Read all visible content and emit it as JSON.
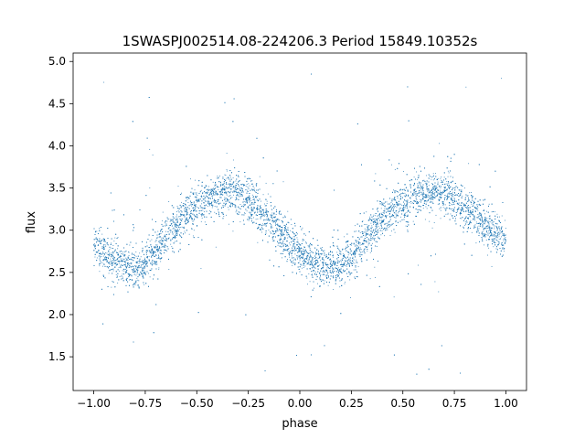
{
  "chart_data": {
    "type": "scatter",
    "title": "1SWASPJ002514.08-224206.3 Period 15849.10352s",
    "xlabel": "phase",
    "ylabel": "flux",
    "xlim": [
      -1.1,
      1.1
    ],
    "ylim": [
      1.1,
      5.1
    ],
    "xticks": [
      -1.0,
      -0.75,
      -0.5,
      -0.25,
      0.0,
      0.25,
      0.5,
      0.75,
      1.0
    ],
    "xtick_labels": [
      "−1.00",
      "−0.75",
      "−0.50",
      "−0.25",
      "0.00",
      "0.25",
      "0.50",
      "0.75",
      "1.00"
    ],
    "yticks": [
      1.5,
      2.0,
      2.5,
      3.0,
      3.5,
      4.0,
      4.5,
      5.0
    ],
    "ytick_labels": [
      "1.5",
      "2.0",
      "2.5",
      "3.0",
      "3.5",
      "4.0",
      "4.5",
      "5.0"
    ],
    "grid": false,
    "marker_color": "#1f77b4",
    "series": [
      {
        "x": [
          -1.0,
          -0.95,
          -0.9,
          -0.85,
          -0.8,
          -0.75,
          -0.7,
          -0.65,
          -0.6,
          -0.55,
          -0.5,
          -0.45,
          -0.4,
          -0.35,
          -0.3,
          -0.25,
          -0.2,
          -0.15,
          -0.1,
          -0.05,
          0.0,
          0.05,
          0.1,
          0.15,
          0.2,
          0.25,
          0.3,
          0.35,
          0.4,
          0.45,
          0.5,
          0.55,
          0.6,
          0.65,
          0.7,
          0.75,
          0.8,
          0.85,
          0.9,
          0.95,
          1.0
        ],
        "y": [
          2.82,
          2.72,
          2.64,
          2.57,
          2.55,
          2.6,
          2.76,
          2.92,
          3.06,
          3.19,
          3.28,
          3.36,
          3.42,
          3.45,
          3.43,
          3.36,
          3.25,
          3.12,
          3.0,
          2.87,
          2.75,
          2.64,
          2.57,
          2.55,
          2.58,
          2.7,
          2.86,
          3.01,
          3.14,
          3.24,
          3.32,
          3.39,
          3.44,
          3.45,
          3.43,
          3.37,
          3.27,
          3.16,
          3.06,
          2.96,
          2.87
        ],
        "scatter_std": 0.12,
        "outlier_range": [
          1.25,
          4.95
        ]
      }
    ]
  }
}
